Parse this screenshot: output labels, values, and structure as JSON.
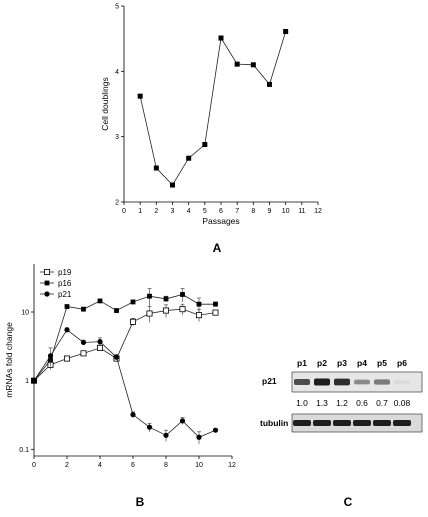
{
  "panels": {
    "A": "A",
    "B": "B",
    "C": "C"
  },
  "chart_data": [
    {
      "type": "line",
      "panel": "A",
      "xlabel": "Passages",
      "ylabel": "Cell doublings",
      "xlim": [
        0,
        12
      ],
      "ylim": [
        2,
        5
      ],
      "xticks": [
        0,
        1,
        2,
        3,
        4,
        5,
        6,
        7,
        8,
        9,
        10,
        11,
        12
      ],
      "yticks": [
        2,
        3,
        4,
        5
      ],
      "grid": false,
      "series": [
        {
          "marker": "filled-square",
          "x": [
            1,
            2,
            3,
            4,
            5,
            6,
            7,
            8,
            9,
            10
          ],
          "y": [
            3.62,
            2.52,
            2.26,
            2.67,
            2.88,
            4.51,
            4.11,
            4.1,
            3.8,
            4.61
          ]
        }
      ]
    },
    {
      "type": "line",
      "panel": "B",
      "xlabel": "Passages",
      "ylabel": "mRNAs fold change",
      "yscale": "log",
      "xlim": [
        0,
        12
      ],
      "ylim": [
        0.08,
        50
      ],
      "xticks": [
        0,
        2,
        4,
        6,
        8,
        10,
        12
      ],
      "yticks": [
        0.1,
        1,
        10
      ],
      "ytick_labels": [
        "0.1",
        "1",
        "10"
      ],
      "grid": false,
      "legend": "top-left",
      "series": [
        {
          "name": "p19",
          "marker": "open-square",
          "x": [
            0,
            1,
            2,
            3,
            4,
            5,
            6,
            7,
            8,
            9,
            10,
            11
          ],
          "y": [
            1.0,
            1.7,
            2.1,
            2.5,
            3.0,
            2.1,
            7.2,
            9.5,
            10.5,
            11.0,
            9.0,
            9.8
          ],
          "err": [
            0.05,
            0.25,
            0.15,
            0.15,
            0.3,
            0.2,
            0.9,
            2.5,
            2.2,
            2.0,
            1.8,
            0.8
          ]
        },
        {
          "name": "p16",
          "marker": "filled-square",
          "x": [
            0,
            1,
            2,
            3,
            4,
            5,
            6,
            7,
            8,
            9,
            10,
            11
          ],
          "y": [
            1.0,
            2.0,
            12.0,
            11.0,
            14.5,
            10.5,
            14.0,
            17.0,
            15.5,
            18.0,
            13.0,
            13.0
          ],
          "err": [
            0.05,
            0.2,
            0.6,
            0.5,
            0.8,
            0.6,
            1.0,
            5.0,
            1.5,
            4.0,
            3.0,
            1.0
          ]
        },
        {
          "name": "p21",
          "marker": "filled-circle",
          "x": [
            0,
            1,
            2,
            3,
            4,
            5,
            6,
            7,
            8,
            9,
            10,
            11
          ],
          "y": [
            1.0,
            2.3,
            5.5,
            3.6,
            3.7,
            2.2,
            0.32,
            0.21,
            0.16,
            0.26,
            0.15,
            0.19
          ],
          "err": [
            0.05,
            0.7,
            0.4,
            0.3,
            0.5,
            0.2,
            0.03,
            0.03,
            0.03,
            0.03,
            0.03,
            0.01
          ]
        }
      ]
    }
  ],
  "blot": {
    "lanes": [
      "p1",
      "p2",
      "p3",
      "p4",
      "p5",
      "p6"
    ],
    "p21_label": "p21",
    "tubulin_label": "tubulin",
    "quant": [
      "1.0",
      "1.3",
      "1.2",
      "0.6",
      "0.7",
      "0.08"
    ],
    "p21_intensity": [
      1.0,
      1.3,
      1.2,
      0.6,
      0.7,
      0.08
    ]
  }
}
